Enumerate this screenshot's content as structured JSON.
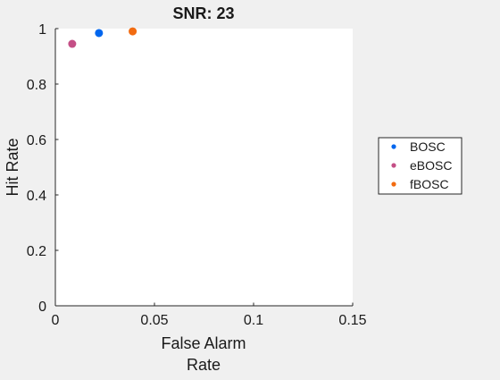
{
  "chart_data": {
    "type": "scatter",
    "title": "SNR: 23",
    "xlabel_lines": [
      "False Alarm",
      "Rate"
    ],
    "ylabel": "Hit Rate",
    "xlim": [
      0,
      0.15
    ],
    "ylim": [
      0,
      1
    ],
    "xticks": [
      0,
      0.05,
      0.1,
      0.15
    ],
    "xtick_labels": [
      "0",
      "0.05",
      "0.1",
      "0.15"
    ],
    "yticks": [
      0,
      0.2,
      0.4,
      0.6,
      0.8,
      1
    ],
    "ytick_labels": [
      "0",
      "0.2",
      "0.4",
      "0.6",
      "0.8",
      "1"
    ],
    "grid": false,
    "legend_placement": "outside-right",
    "series": [
      {
        "name": "BOSC",
        "color": "#0066ee",
        "points": [
          {
            "x": 0.022,
            "y": 0.984
          }
        ]
      },
      {
        "name": "eBOSC",
        "color": "#c44f86",
        "points": [
          {
            "x": 0.0085,
            "y": 0.945
          }
        ]
      },
      {
        "name": "fBOSC",
        "color": "#f26b10",
        "points": [
          {
            "x": 0.039,
            "y": 0.99
          }
        ]
      }
    ]
  }
}
